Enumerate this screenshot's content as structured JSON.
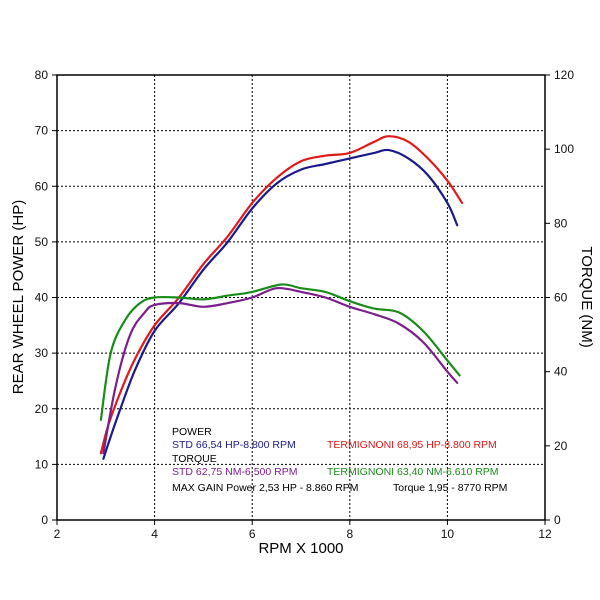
{
  "chart_data": {
    "type": "line",
    "xlabel": "RPM X 1000",
    "ylabel_left": "REAR WHEEL POWER (HP)",
    "ylabel_right": "TORQUE (NM)",
    "xlim": [
      2,
      12
    ],
    "ylim_left": [
      0,
      80
    ],
    "ylim_right": [
      0,
      120
    ],
    "x_ticks": [
      "2",
      "4",
      "6",
      "8",
      "10",
      "12"
    ],
    "y_ticks_left": [
      "0",
      "10",
      "20",
      "30",
      "40",
      "50",
      "60",
      "70",
      "80"
    ],
    "y_ticks_right": [
      "0",
      "20",
      "40",
      "60",
      "80",
      "100",
      "120"
    ],
    "grid": true,
    "series": [
      {
        "name": "STD 66,54 HP-8.800 RPM",
        "axis": "left",
        "color": "#1a1a8c",
        "x": [
          2.95,
          3.1,
          3.3,
          3.6,
          4.0,
          4.5,
          5.0,
          5.5,
          6.0,
          6.5,
          7.0,
          7.5,
          8.0,
          8.5,
          8.8,
          9.2,
          9.6,
          10.0,
          10.2
        ],
        "y": [
          11,
          15,
          20,
          27,
          34,
          39,
          45,
          50,
          56,
          60.5,
          63,
          64,
          65,
          66,
          66.5,
          65,
          62,
          57,
          53
        ]
      },
      {
        "name": "TERMIGNONI 68,95 HP-8.800 RPM",
        "axis": "left",
        "color": "#e01a1a",
        "x": [
          2.9,
          3.05,
          3.3,
          3.6,
          4.0,
          4.5,
          5.0,
          5.5,
          6.0,
          6.5,
          7.0,
          7.5,
          8.0,
          8.5,
          8.8,
          9.2,
          9.6,
          10.0,
          10.3
        ],
        "y": [
          12,
          17,
          23,
          29,
          35,
          40,
          46,
          51,
          57,
          61.5,
          64.5,
          65.5,
          66,
          68,
          69,
          68,
          65,
          61,
          57
        ]
      },
      {
        "name": "STD 62,75 NM-6.500 RPM",
        "axis": "right",
        "color": "#7a1f8c",
        "x": [
          2.95,
          3.2,
          3.5,
          3.8,
          4.0,
          4.5,
          5.0,
          5.5,
          6.0,
          6.5,
          7.0,
          7.5,
          8.0,
          8.5,
          9.0,
          9.5,
          10.0,
          10.2
        ],
        "y": [
          18,
          36,
          50,
          56,
          58,
          58.5,
          57.5,
          58.5,
          60,
          62.5,
          61.5,
          60,
          57.5,
          55.5,
          53,
          48,
          40,
          37
        ]
      },
      {
        "name": "TERMIGNONI 63,40 NM-6.610 RPM",
        "axis": "right",
        "color": "#1a8c1a",
        "x": [
          2.9,
          3.1,
          3.4,
          3.7,
          4.0,
          4.5,
          5.0,
          5.5,
          6.0,
          6.6,
          7.0,
          7.5,
          8.0,
          8.5,
          9.0,
          9.5,
          10.0,
          10.25
        ],
        "y": [
          27,
          45,
          54,
          58.5,
          60,
          60,
          59.5,
          60.5,
          61.5,
          63.5,
          62.5,
          61.5,
          59,
          57,
          56,
          51,
          43,
          39
        ]
      }
    ],
    "legend": {
      "power_title": "POWER",
      "power_std": "STD 66,54 HP-8.800 RPM",
      "power_term": "TERMIGNONI 68,95 HP-8.800 RPM",
      "torque_title": "TORQUE",
      "torque_std": "STD 62,75 NM-6.500 RPM",
      "torque_term": "TERMIGNONI 63,40 NM-6.610 RPM",
      "max_gain_power": "MAX GAIN Power 2,53 HP - 8.860 RPM",
      "max_gain_torque": "Torque 1,95 - 8770 RPM"
    }
  }
}
